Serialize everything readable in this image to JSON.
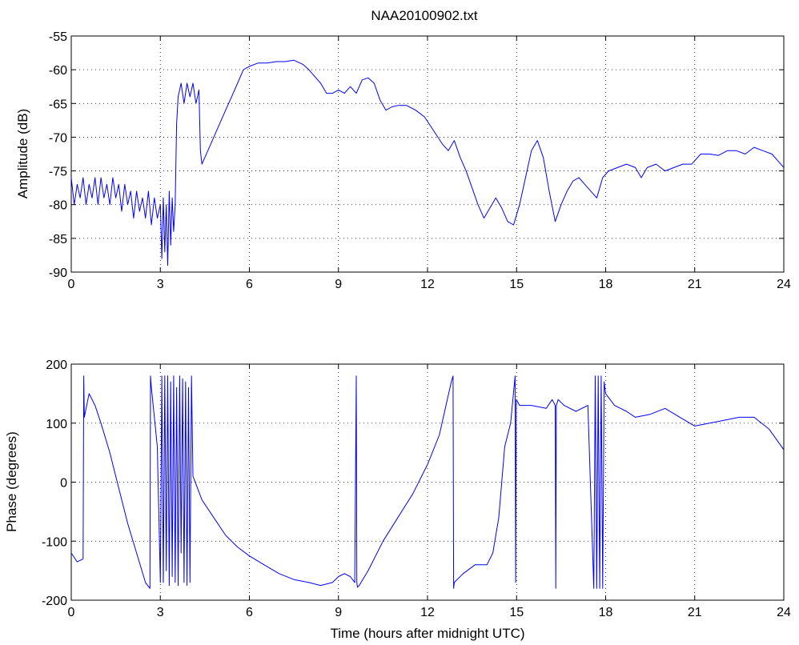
{
  "chart_data": [
    {
      "type": "line",
      "title": "NAA20100902.txt",
      "xlabel": "",
      "ylabel": "Amplitude (dB)",
      "xlim": [
        0,
        24
      ],
      "ylim": [
        -90,
        -55
      ],
      "xticks": [
        0,
        3,
        6,
        9,
        12,
        15,
        18,
        21,
        24
      ],
      "yticks": [
        -90,
        -85,
        -80,
        -75,
        -70,
        -65,
        -60,
        -55
      ],
      "grid": true,
      "series": [
        {
          "color": "#0000ff",
          "x": [
            0,
            0.1,
            0.2,
            0.3,
            0.4,
            0.5,
            0.6,
            0.7,
            0.8,
            0.9,
            1.0,
            1.1,
            1.2,
            1.3,
            1.4,
            1.5,
            1.6,
            1.7,
            1.8,
            1.9,
            2.0,
            2.1,
            2.2,
            2.3,
            2.4,
            2.5,
            2.6,
            2.7,
            2.8,
            2.9,
            3.0,
            3.05,
            3.1,
            3.15,
            3.2,
            3.25,
            3.3,
            3.35,
            3.4,
            3.45,
            3.5,
            3.55,
            3.6,
            3.7,
            3.8,
            3.9,
            4.0,
            4.1,
            4.2,
            4.3,
            4.35,
            4.4,
            4.6,
            4.8,
            5.0,
            5.2,
            5.4,
            5.6,
            5.8,
            6.0,
            6.3,
            6.6,
            6.9,
            7.2,
            7.5,
            7.8,
            8.0,
            8.2,
            8.4,
            8.6,
            8.8,
            9.0,
            9.2,
            9.4,
            9.6,
            9.8,
            10.0,
            10.2,
            10.4,
            10.6,
            10.8,
            11.0,
            11.3,
            11.6,
            11.9,
            12.2,
            12.5,
            12.7,
            12.9,
            13.1,
            13.3,
            13.5,
            13.7,
            13.9,
            14.1,
            14.3,
            14.5,
            14.7,
            14.9,
            15.1,
            15.3,
            15.5,
            15.7,
            15.9,
            16.1,
            16.3,
            16.5,
            16.7,
            16.9,
            17.1,
            17.3,
            17.5,
            17.7,
            17.9,
            18.1,
            18.4,
            18.7,
            19.0,
            19.2,
            19.4,
            19.7,
            20.0,
            20.3,
            20.6,
            20.9,
            21.2,
            21.5,
            21.8,
            22.1,
            22.4,
            22.7,
            23.0,
            23.3,
            23.6,
            23.8,
            24.0
          ],
          "y": [
            -76,
            -80,
            -77,
            -79,
            -76,
            -80,
            -77,
            -79,
            -76,
            -80,
            -76,
            -79,
            -77,
            -80,
            -76,
            -79,
            -77,
            -81,
            -77,
            -80,
            -78,
            -82,
            -78,
            -81,
            -79,
            -82,
            -78,
            -83,
            -79,
            -82,
            -80,
            -88,
            -79,
            -87,
            -80,
            -89,
            -78,
            -86,
            -79,
            -84,
            -80,
            -68,
            -64,
            -62,
            -65,
            -62,
            -64,
            -62,
            -65,
            -63,
            -72,
            -74,
            -72,
            -70,
            -68,
            -66,
            -64,
            -62,
            -60,
            -59.5,
            -59,
            -59,
            -58.8,
            -58.8,
            -58.6,
            -59.2,
            -60,
            -61,
            -62,
            -63.5,
            -63.5,
            -63,
            -63.5,
            -62.5,
            -63.5,
            -61.5,
            -61.2,
            -62,
            -64.5,
            -66,
            -65.5,
            -65.3,
            -65.3,
            -66,
            -67,
            -69,
            -71,
            -72,
            -70.5,
            -73,
            -75,
            -77.5,
            -80,
            -82,
            -80.5,
            -79,
            -80.5,
            -82.5,
            -83,
            -80,
            -76,
            -72,
            -70.5,
            -73,
            -78,
            -82.5,
            -80,
            -78,
            -76.5,
            -76,
            -77,
            -78,
            -79,
            -76,
            -75,
            -74.5,
            -74,
            -74.5,
            -76,
            -74.5,
            -74,
            -75,
            -74.5,
            -74,
            -74,
            -72.5,
            -72.5,
            -72.7,
            -72,
            -72,
            -72.5,
            -71.5,
            -72,
            -72.5,
            -73.5,
            -74.5
          ]
        }
      ]
    },
    {
      "type": "line",
      "title": "",
      "xlabel": "Time (hours after midnight UTC)",
      "ylabel": "Phase (degrees)",
      "xlim": [
        0,
        24
      ],
      "ylim": [
        -200,
        200
      ],
      "xticks": [
        0,
        3,
        6,
        9,
        12,
        15,
        18,
        21,
        24
      ],
      "yticks": [
        -200,
        -100,
        0,
        100,
        200
      ],
      "grid": true,
      "series": [
        {
          "color": "#0000ff",
          "x": [
            0,
            0.2,
            0.4,
            0.42,
            0.44,
            0.6,
            0.8,
            1.0,
            1.3,
            1.6,
            1.9,
            2.2,
            2.5,
            2.65,
            2.67,
            2.7,
            2.9,
            3.0,
            3.05,
            3.1,
            3.15,
            3.2,
            3.25,
            3.3,
            3.35,
            3.4,
            3.45,
            3.5,
            3.55,
            3.6,
            3.65,
            3.7,
            3.75,
            3.8,
            3.85,
            3.9,
            3.95,
            4.0,
            4.05,
            4.1,
            4.4,
            4.8,
            5.2,
            5.6,
            6.0,
            6.5,
            7.0,
            7.5,
            8.0,
            8.4,
            8.8,
            9.0,
            9.2,
            9.4,
            9.55,
            9.6,
            9.62,
            9.64,
            9.7,
            10.0,
            10.5,
            11.0,
            11.5,
            12.0,
            12.4,
            12.8,
            12.86,
            12.88,
            12.9,
            13.2,
            13.6,
            14.0,
            14.2,
            14.4,
            14.6,
            14.8,
            14.95,
            14.97,
            14.99,
            15.1,
            15.5,
            16.0,
            16.2,
            16.3,
            16.32,
            16.34,
            16.4,
            16.6,
            17.0,
            17.4,
            17.6,
            17.65,
            17.7,
            17.75,
            17.8,
            17.85,
            17.9,
            17.95,
            18.0,
            18.3,
            18.7,
            19.0,
            19.5,
            20.0,
            20.5,
            21.0,
            21.5,
            22.0,
            22.5,
            23.0,
            23.5,
            24.0
          ],
          "y": [
            -120,
            -135,
            -130,
            180,
            110,
            150,
            130,
            100,
            50,
            -10,
            -70,
            -120,
            -170,
            -180,
            180,
            160,
            60,
            -170,
            180,
            -170,
            180,
            -150,
            180,
            -175,
            170,
            -160,
            180,
            -170,
            160,
            -175,
            180,
            -120,
            175,
            -170,
            170,
            -175,
            160,
            -170,
            180,
            10,
            -30,
            -60,
            -90,
            -110,
            -125,
            -140,
            -155,
            -165,
            -170,
            -175,
            -170,
            -160,
            -155,
            -160,
            -170,
            180,
            -170,
            -178,
            -175,
            -150,
            -100,
            -60,
            -20,
            30,
            80,
            170,
            180,
            -180,
            -170,
            -155,
            -140,
            -140,
            -120,
            -60,
            60,
            100,
            180,
            -170,
            140,
            130,
            130,
            125,
            140,
            130,
            -180,
            130,
            140,
            130,
            120,
            130,
            -180,
            180,
            -180,
            180,
            -180,
            180,
            -180,
            170,
            150,
            130,
            120,
            110,
            115,
            125,
            110,
            95,
            100,
            105,
            110,
            110,
            90,
            55
          ]
        }
      ]
    }
  ]
}
